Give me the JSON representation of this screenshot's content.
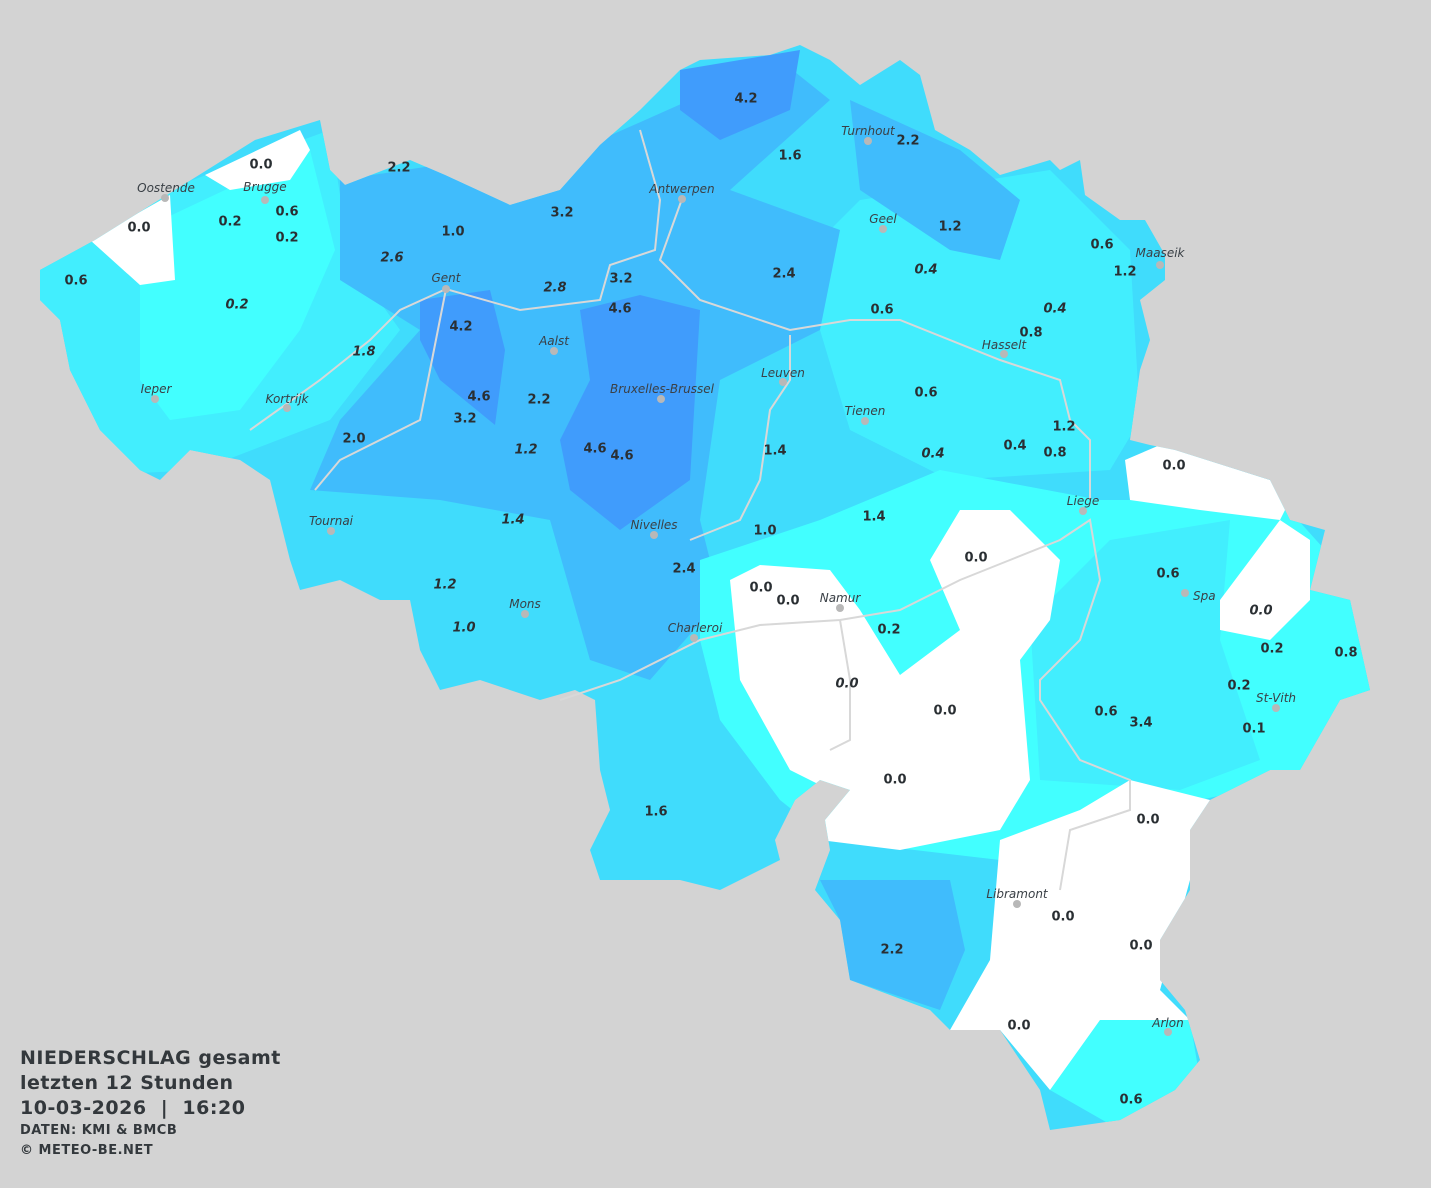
{
  "title": {
    "line1": "NIEDERSCHLAG gesamt",
    "line2": "letzten 12 Stunden",
    "datetime": "10-03-2026  |  16:20",
    "source": "DATEN: KMI & BMCB",
    "copyright": "© METEO-BE.NET"
  },
  "colors": {
    "background": "#d3d3d3",
    "zero": "#ffffff",
    "level1": "#42ffff",
    "level2": "#42eefe",
    "level3": "#40dcfc",
    "level4": "#40bcfc",
    "level5": "#409cfc",
    "rivers": "#d8d8d8"
  },
  "cities": [
    "Oostende",
    "Brugge",
    "Gent",
    "Antwerpen",
    "Aalst",
    "Bruxelles-Brussel",
    "Leuven",
    "Tienen",
    "Hasselt",
    "Geel",
    "Turnhout",
    "Maaseik",
    "Ieper",
    "Kortrijk",
    "Tournai",
    "Mons",
    "Nivelles",
    "Charleroi",
    "Namur",
    "Liege",
    "Spa",
    "St-Vith",
    "Libramont",
    "Arlon"
  ],
  "values": [
    "0.0",
    "0.0",
    "0.2",
    "0.6",
    "0.2",
    "0.6",
    "0.2",
    "2.2",
    "1.0",
    "2.6",
    "3.2",
    "4.2",
    "1.6",
    "2.2",
    "1.2",
    "0.6",
    "1.2",
    "0.4",
    "2.4",
    "3.2",
    "4.6",
    "2.8",
    "4.2",
    "1.8",
    "0.6",
    "0.4",
    "0.8",
    "4.6",
    "3.2",
    "2.2",
    "2.0",
    "1.2",
    "4.6",
    "4.6",
    "1.4",
    "0.6",
    "1.2",
    "0.4",
    "0.8",
    "0.4",
    "0.0",
    "1.4",
    "1.0",
    "1.4",
    "0.0",
    "2.4",
    "1.2",
    "0.0",
    "0.0",
    "0.6",
    "0.0",
    "1.0",
    "0.2",
    "0.2",
    "0.8",
    "0.0",
    "0.0",
    "0.2",
    "0.6",
    "3.4",
    "0.1",
    "0.0",
    "1.6",
    "0.0",
    "0.0",
    "2.2",
    "0.0",
    "0.0",
    "0.6"
  ]
}
